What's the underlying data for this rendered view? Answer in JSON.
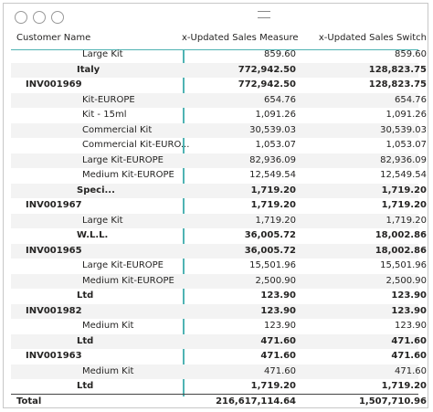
{
  "table": {
    "columns": [
      "Customer Name",
      "x-Updated Sales Measure",
      "x-Updated Sales Switch"
    ],
    "rows": [
      {
        "name": "Large Kit",
        "cells": [
          "859.60",
          "859.60"
        ],
        "bold": false
      },
      {
        "name": "Italy",
        "cells": [
          "772,942.50",
          "128,823.75"
        ],
        "bold": true
      },
      {
        "name": "INV001969",
        "cells": [
          "772,942.50",
          "128,823.75"
        ],
        "bold": true
      },
      {
        "name": "Kit-EUROPE",
        "cells": [
          "654.76",
          "654.76"
        ],
        "bold": false
      },
      {
        "name": "Kit - 15ml",
        "cells": [
          "1,091.26",
          "1,091.26"
        ],
        "bold": false
      },
      {
        "name": "Commercial Kit",
        "cells": [
          "30,539.03",
          "30,539.03"
        ],
        "bold": false
      },
      {
        "name": "Commercial Kit-EURO...",
        "cells": [
          "1,053.07",
          "1,053.07"
        ],
        "bold": false
      },
      {
        "name": "Large Kit-EUROPE",
        "cells": [
          "82,936.09",
          "82,936.09"
        ],
        "bold": false
      },
      {
        "name": "Medium Kit-EUROPE",
        "cells": [
          "12,549.54",
          "12,549.54"
        ],
        "bold": false
      },
      {
        "name": "Speci...",
        "cells": [
          "1,719.20",
          "1,719.20"
        ],
        "bold": true
      },
      {
        "name": "INV001967",
        "cells": [
          "1,719.20",
          "1,719.20"
        ],
        "bold": true
      },
      {
        "name": "Large Kit",
        "cells": [
          "1,719.20",
          "1,719.20"
        ],
        "bold": false
      },
      {
        "name": "W.L.L.",
        "cells": [
          "36,005.72",
          "18,002.86"
        ],
        "bold": true
      },
      {
        "name": "INV001965",
        "cells": [
          "36,005.72",
          "18,002.86"
        ],
        "bold": true
      },
      {
        "name": "Large Kit-EUROPE",
        "cells": [
          "15,501.96",
          "15,501.96"
        ],
        "bold": false
      },
      {
        "name": "Medium Kit-EUROPE",
        "cells": [
          "2,500.90",
          "2,500.90"
        ],
        "bold": false
      },
      {
        "name": "Ltd",
        "cells": [
          "123.90",
          "123.90"
        ],
        "bold": true
      },
      {
        "name": "INV001982",
        "cells": [
          "123.90",
          "123.90"
        ],
        "bold": true
      },
      {
        "name": "Medium Kit",
        "cells": [
          "123.90",
          "123.90"
        ],
        "bold": false
      },
      {
        "name": "Ltd",
        "cells": [
          "471.60",
          "471.60"
        ],
        "bold": true
      },
      {
        "name": "INV001963",
        "cells": [
          "471.60",
          "471.60"
        ],
        "bold": true
      },
      {
        "name": "Medium Kit",
        "cells": [
          "471.60",
          "471.60"
        ],
        "bold": false
      },
      {
        "name": "Ltd",
        "cells": [
          "1,719.20",
          "1,719.20"
        ],
        "bold": true
      }
    ],
    "total": {
      "name": "Total",
      "cells": [
        "216,617,114.64",
        "1,507,710.96"
      ]
    }
  }
}
